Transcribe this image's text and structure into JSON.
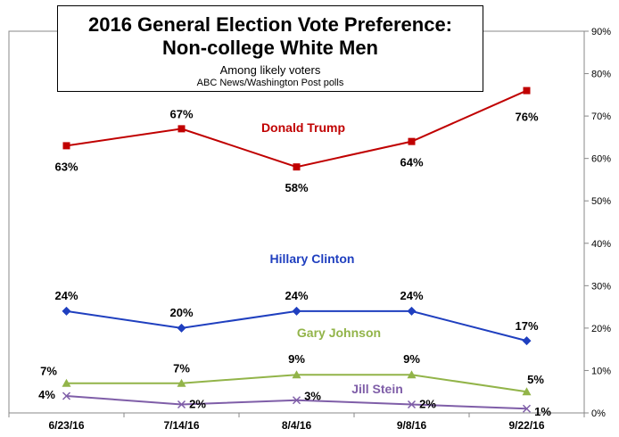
{
  "chart_data": {
    "type": "line",
    "title": "2016 General Election Vote Preference: Non-college White Men",
    "subtitle": "Among likely voters",
    "source": "ABC News/Washington  Post polls",
    "categories": [
      "6/23/16",
      "7/14/16",
      "8/4/16",
      "9/8/16",
      "9/22/16"
    ],
    "ylim": [
      0,
      90
    ],
    "yticks": [
      "0%",
      "10%",
      "20%",
      "30%",
      "40%",
      "50%",
      "60%",
      "70%",
      "80%",
      "90%"
    ],
    "y_axis_side": "right",
    "grid": false,
    "series": [
      {
        "name": "Donald Trump",
        "color": "#c00000",
        "marker": "square",
        "values": [
          63,
          67,
          58,
          64,
          76
        ],
        "labels": [
          "63%",
          "67%",
          "58%",
          "64%",
          "76%"
        ]
      },
      {
        "name": "Hillary Clinton",
        "color": "#1f3fbf",
        "marker": "diamond",
        "values": [
          24,
          20,
          24,
          24,
          17
        ],
        "labels": [
          "24%",
          "20%",
          "24%",
          "24%",
          "17%"
        ]
      },
      {
        "name": "Gary Johnson",
        "color": "#92b449",
        "marker": "triangle",
        "values": [
          7,
          7,
          9,
          9,
          5
        ],
        "labels": [
          "7%",
          "7%",
          "9%",
          "9%",
          "5%"
        ]
      },
      {
        "name": "Jill Stein",
        "color": "#7f5ea8",
        "marker": "x",
        "values": [
          4,
          2,
          3,
          2,
          1
        ],
        "labels": [
          "4%",
          "2%",
          "3%",
          "2%",
          "1%"
        ]
      }
    ]
  }
}
